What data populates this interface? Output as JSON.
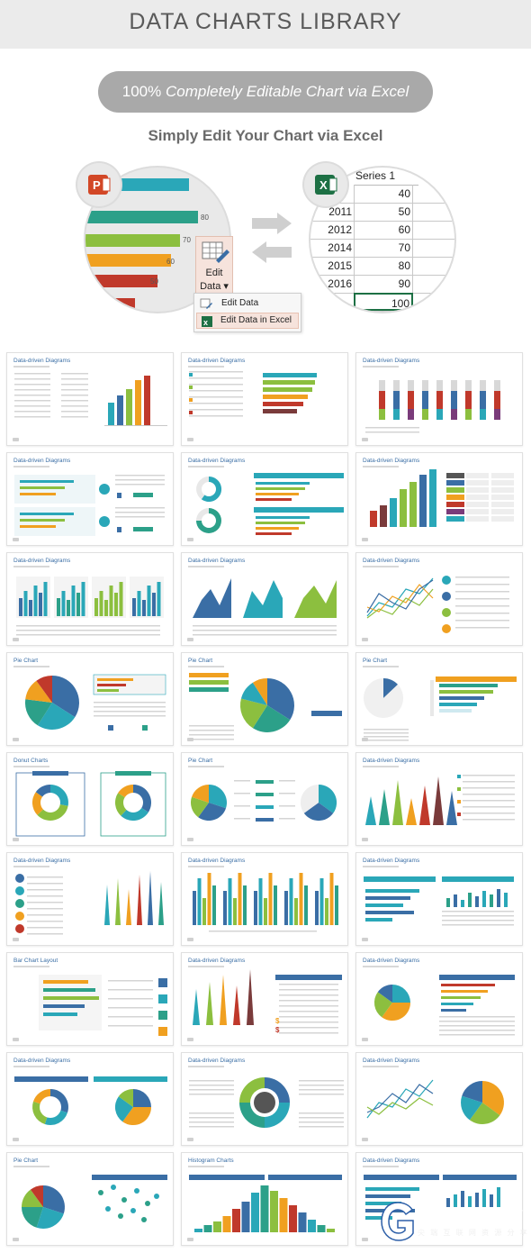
{
  "header": {
    "title": "DATA CHARTS LIBRARY"
  },
  "banner": {
    "pill_percent": "100%",
    "pill_text": "Completely Editable Chart via Excel",
    "subtitle": "Simply Edit Your Chart via Excel"
  },
  "left_circle": {
    "bar_labels": [
      "80",
      "70",
      "60",
      "50"
    ],
    "colors": [
      "#2aa7b8",
      "#2ca089",
      "#8cbf3f",
      "#f0a020",
      "#c0392b"
    ],
    "edit_button": {
      "line1": "Edit",
      "line2": "Data"
    },
    "menu": {
      "items": [
        "Edit Data",
        "Edit Data in Excel"
      ]
    }
  },
  "right_circle": {
    "header": "Series 1",
    "rows": [
      {
        "year": "",
        "value": "40"
      },
      {
        "year": "2011",
        "value": "50"
      },
      {
        "year": "2012",
        "value": "60"
      },
      {
        "year": "2014",
        "value": "70"
      },
      {
        "year": "2015",
        "value": "80"
      },
      {
        "year": "2016",
        "value": "90"
      },
      {
        "year": "",
        "value": "100"
      }
    ]
  },
  "cards": [
    {
      "title": "Data-driven Diagrams",
      "type": "bar"
    },
    {
      "title": "Data-driven Diagrams",
      "type": "hbar"
    },
    {
      "title": "Data-driven Diagrams",
      "type": "stacked"
    },
    {
      "title": "Data-driven Diagrams",
      "type": "hbar2"
    },
    {
      "title": "Data-driven Diagrams",
      "type": "donut_bars"
    },
    {
      "title": "Data-driven Diagrams",
      "type": "bar_table"
    },
    {
      "title": "Data-driven Diagrams",
      "type": "minibars"
    },
    {
      "title": "Data-driven Diagrams",
      "type": "area"
    },
    {
      "title": "Data-driven Diagrams",
      "type": "line"
    },
    {
      "title": "Pie Chart",
      "type": "pie"
    },
    {
      "title": "Pie Chart",
      "type": "pie2"
    },
    {
      "title": "Pie Chart",
      "type": "pie3"
    },
    {
      "title": "Donut Charts",
      "type": "donuts"
    },
    {
      "title": "Pie Chart",
      "type": "pie4"
    },
    {
      "title": "Data-driven Diagrams",
      "type": "cones"
    },
    {
      "title": "Data-driven Diagrams",
      "type": "spikes"
    },
    {
      "title": "Data-driven Diagrams",
      "type": "bars_many"
    },
    {
      "title": "Data-driven Diagrams",
      "type": "hbar_split"
    },
    {
      "title": "Bar Chart Layout",
      "type": "bar_layout"
    },
    {
      "title": "Data-driven Diagrams",
      "type": "spikes2"
    },
    {
      "title": "Data-driven Diagrams",
      "type": "pie_bars"
    },
    {
      "title": "Data-driven Diagrams",
      "type": "two_donuts"
    },
    {
      "title": "Data-driven Diagrams",
      "type": "big_donut"
    },
    {
      "title": "Data-driven Diagrams",
      "type": "line_pie"
    },
    {
      "title": "Pie Chart",
      "type": "pie_scatter"
    },
    {
      "title": "Histogram Charts",
      "type": "histogram"
    },
    {
      "title": "Data-driven Diagrams",
      "type": "bars_last"
    }
  ],
  "watermark": {
    "brand": "GFXAA.COM",
    "tagline": "尖 端 互 联 网 资 源 分 享"
  }
}
